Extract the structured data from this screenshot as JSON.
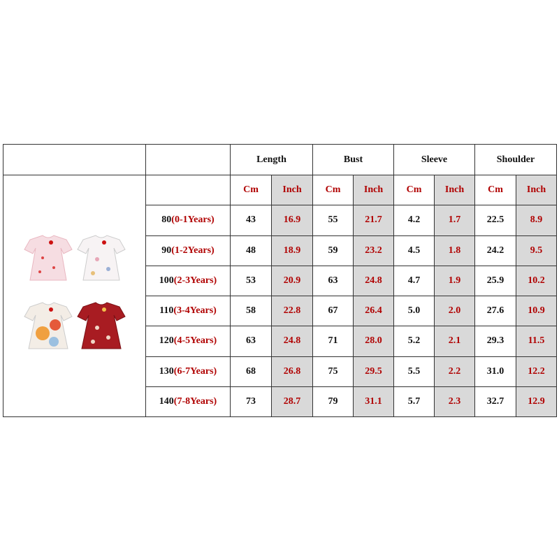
{
  "header": {
    "columns": [
      "Length",
      "Bust",
      "Sleeve",
      "Shoulder"
    ],
    "units": [
      "Cm",
      "Inch"
    ]
  },
  "rows": [
    {
      "size": "80",
      "age": "(0-1Years)",
      "values": [
        "43",
        "16.9",
        "55",
        "21.7",
        "4.2",
        "1.7",
        "22.5",
        "8.9"
      ]
    },
    {
      "size": "90",
      "age": "(1-2Years)",
      "values": [
        "48",
        "18.9",
        "59",
        "23.2",
        "4.5",
        "1.8",
        "24.2",
        "9.5"
      ]
    },
    {
      "size": "100",
      "age": "(2-3Years)",
      "values": [
        "53",
        "20.9",
        "63",
        "24.8",
        "4.7",
        "1.9",
        "25.9",
        "10.2"
      ]
    },
    {
      "size": "110",
      "age": "(3-4Years)",
      "values": [
        "58",
        "22.8",
        "67",
        "26.4",
        "5.0",
        "2.0",
        "27.6",
        "10.9"
      ]
    },
    {
      "size": "120",
      "age": "(4-5Years)",
      "values": [
        "63",
        "24.8",
        "71",
        "28.0",
        "5.2",
        "2.1",
        "29.3",
        "11.5"
      ]
    },
    {
      "size": "130",
      "age": "(6-7Years)",
      "values": [
        "68",
        "26.8",
        "75",
        "29.5",
        "5.5",
        "2.2",
        "31.0",
        "12.2"
      ]
    },
    {
      "size": "140",
      "age": "(7-8Years)",
      "values": [
        "73",
        "28.7",
        "79",
        "31.1",
        "5.7",
        "2.3",
        "32.7",
        "12.9"
      ]
    }
  ]
}
